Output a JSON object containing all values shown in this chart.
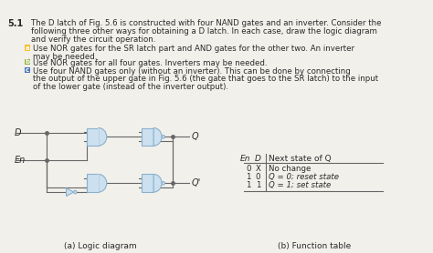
{
  "title_num": "5.1",
  "title_text_line1": "The D latch of Fig. 5.6 is constructed with four NAND gates and an inverter. Consider the",
  "title_text_line2": "following three other ways for obtaining a D latch. In each case, draw the logic diagram",
  "title_text_line3": "and verify the circuit operation.",
  "items": [
    {
      "label": "a",
      "color": "#f0c030",
      "text1": "Use NOR gates for the SR latch part and AND gates for the other two. An inverter",
      "text2": "may be needed."
    },
    {
      "label": "b",
      "color": "#90b840",
      "text1": "Use NOR gates for all four gates. Inverters may be needed.",
      "text2": ""
    },
    {
      "label": "c",
      "color": "#4878b8",
      "text1": "Use four NAND gates only (without an inverter). This can be done by connecting",
      "text2": "the output of the upper gate in Fig. 5.6 (the gate that goes to the SR latch) to the input",
      "text3": "of the lower gate (instead of the inverter output)."
    }
  ],
  "diagram_label": "(a) Logic diagram",
  "table_label": "(b) Function table",
  "table_header": [
    "En",
    "D",
    "Next state of Q"
  ],
  "table_rows": [
    [
      "0",
      "X",
      "No change"
    ],
    [
      "1",
      "0",
      "Q = 0; reset state"
    ],
    [
      "1",
      "1",
      "Q = 1; set state"
    ]
  ],
  "bg_color": "#f2f0eb",
  "gate_fill": "#cce0f0",
  "gate_edge": "#8ab0cc",
  "line_color": "#666666",
  "text_color": "#2a2a2a"
}
